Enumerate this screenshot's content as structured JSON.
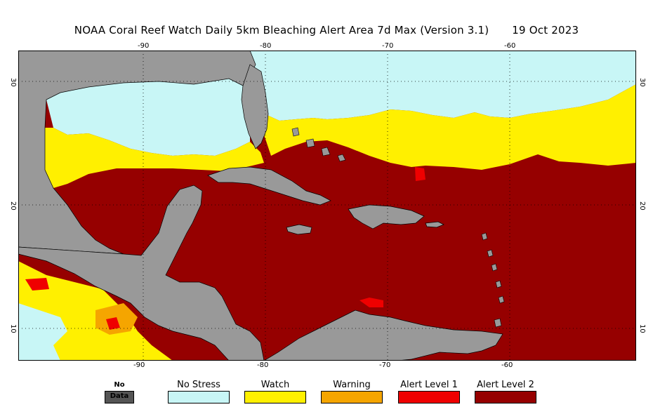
{
  "title": {
    "main": "NOAA Coral Reef Watch Daily 5km Bleaching Alert Area 7d Max (Version 3.1)",
    "date": "19 Oct 2023"
  },
  "map": {
    "region": "Caribbean / Gulf of Mexico",
    "lon_ticks": [
      "-90",
      "-80",
      "-70",
      "-60"
    ],
    "lat_ticks": [
      "30",
      "20",
      "10"
    ]
  },
  "legend": [
    {
      "key": "no_data",
      "label": "No Data",
      "color": "#555555"
    },
    {
      "key": "no_stress",
      "label": "No Stress",
      "color": "#c8f6f6"
    },
    {
      "key": "watch",
      "label": "Watch",
      "color": "#fff000"
    },
    {
      "key": "warning",
      "label": "Warning",
      "color": "#f5a500"
    },
    {
      "key": "alert1",
      "label": "Alert Level 1",
      "color": "#ef0000"
    },
    {
      "key": "alert2",
      "label": "Alert Level 2",
      "color": "#960000"
    }
  ],
  "colors": {
    "land": "#999999",
    "coast": "#000000",
    "grid": "#000000"
  }
}
